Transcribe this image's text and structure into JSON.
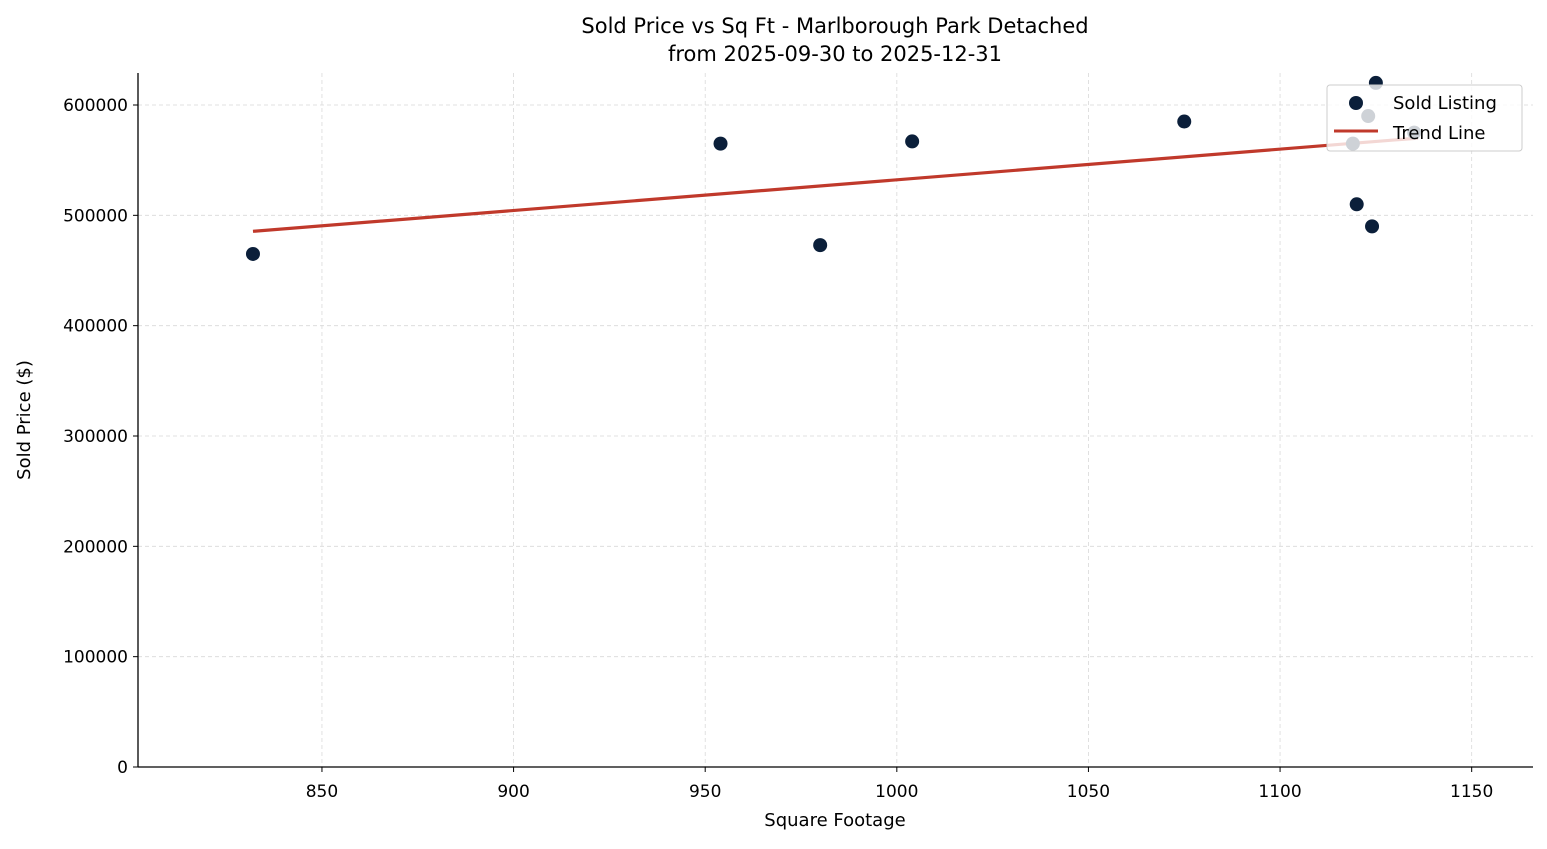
{
  "chart_data": {
    "type": "scatter",
    "title": "Sold Price vs Sq Ft - Marlborough Park Detached",
    "subtitle": "from 2025-09-30 to 2025-12-31",
    "xlabel": "Square Footage",
    "ylabel": "Sold Price ($)",
    "xlim": [
      802,
      1166
    ],
    "ylim": [
      0,
      629000
    ],
    "xticks": [
      "850",
      "900",
      "950",
      "1000",
      "1050",
      "1100",
      "1150"
    ],
    "yticks": [
      "0",
      "100000",
      "200000",
      "300000",
      "400000",
      "500000",
      "600000"
    ],
    "grid": true,
    "legend_position": "top-right",
    "series": [
      {
        "name": "Sold Listing",
        "type": "scatter",
        "color": "#0b1f3a",
        "points": [
          {
            "x": 832,
            "y": 465000
          },
          {
            "x": 954,
            "y": 565000
          },
          {
            "x": 980,
            "y": 473000
          },
          {
            "x": 1004,
            "y": 567000
          },
          {
            "x": 1075,
            "y": 585000
          },
          {
            "x": 1120,
            "y": 510000
          },
          {
            "x": 1124,
            "y": 490000
          },
          {
            "x": 1125,
            "y": 620000
          },
          {
            "x": 1123,
            "y": 590000
          },
          {
            "x": 1119,
            "y": 565000
          },
          {
            "x": 1135,
            "y": 575000
          }
        ]
      },
      {
        "name": "Trend Line",
        "type": "line",
        "color": "#c0392b",
        "points": [
          {
            "x": 832,
            "y": 485500
          },
          {
            "x": 1136,
            "y": 570000
          }
        ]
      }
    ]
  }
}
